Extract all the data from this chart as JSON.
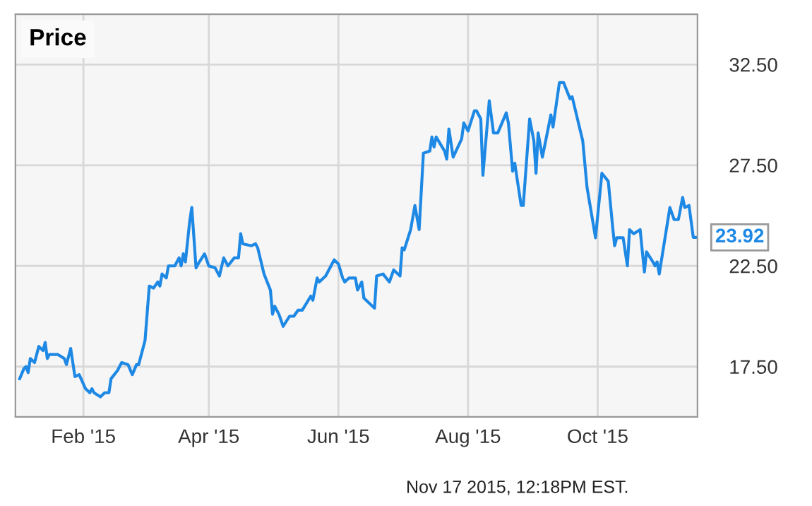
{
  "chart_data": {
    "type": "line",
    "title": "Price",
    "x": [
      "2015-01-02",
      "2015-01-04",
      "2015-01-05",
      "2015-01-06",
      "2015-01-07",
      "2015-01-09",
      "2015-01-11",
      "2015-01-13",
      "2015-01-14",
      "2015-01-15",
      "2015-01-16",
      "2015-01-20",
      "2015-01-23",
      "2015-01-24",
      "2015-01-26",
      "2015-01-28",
      "2015-01-30",
      "2015-02-02",
      "2015-02-04",
      "2015-02-05",
      "2015-02-06",
      "2015-02-09",
      "2015-02-11",
      "2015-02-13",
      "2015-02-14",
      "2015-02-17",
      "2015-02-19",
      "2015-02-22",
      "2015-02-24",
      "2015-02-26",
      "2015-02-27",
      "2015-03-02",
      "2015-03-04",
      "2015-03-06",
      "2015-03-08",
      "2015-03-09",
      "2015-03-10",
      "2015-03-12",
      "2015-03-13",
      "2015-03-16",
      "2015-03-18",
      "2015-03-19",
      "2015-03-20",
      "2015-03-21",
      "2015-03-23",
      "2015-03-24",
      "2015-03-26",
      "2015-03-27",
      "2015-03-30",
      "2015-04-01",
      "2015-04-04",
      "2015-04-06",
      "2015-04-08",
      "2015-04-10",
      "2015-04-13",
      "2015-04-15",
      "2015-04-16",
      "2015-04-17",
      "2015-04-21",
      "2015-04-23",
      "2015-04-24",
      "2015-04-27",
      "2015-04-30",
      "2015-05-01",
      "2015-05-02",
      "2015-05-04",
      "2015-05-06",
      "2015-05-09",
      "2015-05-11",
      "2015-05-13",
      "2015-05-15",
      "2015-05-19",
      "2015-05-20",
      "2015-05-22",
      "2015-05-23",
      "2015-05-26",
      "2015-05-30",
      "2015-06-01",
      "2015-06-03",
      "2015-06-04",
      "2015-06-06",
      "2015-06-09",
      "2015-06-10",
      "2015-06-12",
      "2015-06-13",
      "2015-06-17",
      "2015-06-18",
      "2015-06-19",
      "2015-06-22",
      "2015-06-25",
      "2015-06-27",
      "2015-06-30",
      "2015-07-01",
      "2015-07-02",
      "2015-07-05",
      "2015-07-07",
      "2015-07-09",
      "2015-07-11",
      "2015-07-14",
      "2015-07-15",
      "2015-07-16",
      "2015-07-17",
      "2015-07-21",
      "2015-07-22",
      "2015-07-23",
      "2015-07-25",
      "2015-07-29",
      "2015-07-30",
      "2015-08-01",
      "2015-08-04",
      "2015-08-05",
      "2015-08-07",
      "2015-08-08",
      "2015-08-11",
      "2015-08-13",
      "2015-08-15",
      "2015-08-19",
      "2015-08-20",
      "2015-08-22",
      "2015-08-23",
      "2015-08-26",
      "2015-08-27",
      "2015-08-30",
      "2015-09-01",
      "2015-09-02",
      "2015-09-03",
      "2015-09-05",
      "2015-09-09",
      "2015-09-10",
      "2015-09-13",
      "2015-09-15",
      "2015-09-18",
      "2015-09-19",
      "2015-09-24",
      "2015-09-26",
      "2015-09-30",
      "2015-10-03",
      "2015-10-06",
      "2015-10-08",
      "2015-10-09",
      "2015-10-10",
      "2015-10-13",
      "2015-10-15",
      "2015-10-16",
      "2015-10-18",
      "2015-10-21",
      "2015-10-23",
      "2015-10-24",
      "2015-10-27",
      "2015-10-28",
      "2015-10-29",
      "2015-10-30",
      "2015-11-04",
      "2015-11-06",
      "2015-11-08",
      "2015-11-10",
      "2015-11-11",
      "2015-11-13",
      "2015-11-15",
      "2015-11-17"
    ],
    "series": [
      {
        "color": "#1e88e5",
        "values": [
          16.9,
          17.4,
          17.5,
          17.2,
          17.9,
          17.7,
          18.5,
          18.3,
          18.7,
          17.9,
          18.1,
          18.1,
          17.9,
          17.6,
          18.4,
          17.0,
          17.1,
          16.4,
          16.2,
          16.4,
          16.2,
          16.0,
          16.2,
          16.2,
          16.9,
          17.3,
          17.7,
          17.6,
          17.1,
          17.6,
          17.6,
          18.8,
          21.5,
          21.4,
          21.7,
          21.5,
          22.1,
          21.9,
          22.5,
          22.5,
          22.9,
          22.5,
          23.1,
          22.7,
          24.7,
          25.4,
          22.4,
          22.6,
          23.1,
          22.5,
          22.4,
          22.0,
          22.9,
          22.5,
          22.9,
          22.9,
          24.1,
          23.6,
          23.5,
          23.6,
          23.4,
          22.1,
          21.3,
          20.1,
          20.5,
          20.1,
          19.5,
          20.0,
          20.0,
          20.3,
          20.3,
          21.0,
          20.8,
          21.9,
          21.7,
          22.0,
          22.8,
          22.6,
          21.9,
          21.7,
          21.9,
          21.9,
          21.3,
          21.7,
          20.9,
          20.5,
          20.4,
          22.0,
          22.1,
          21.7,
          22.3,
          22.0,
          23.4,
          23.3,
          24.3,
          25.5,
          24.3,
          28.1,
          28.2,
          28.9,
          28.4,
          28.9,
          28.2,
          27.8,
          29.3,
          27.9,
          28.8,
          29.6,
          29.2,
          30.2,
          30.2,
          29.8,
          27.0,
          30.7,
          29.1,
          29.1,
          30.1,
          29.6,
          27.2,
          27.6,
          25.5,
          25.5,
          29.8,
          28.7,
          27.1,
          29.1,
          27.9,
          30.0,
          29.4,
          31.6,
          31.6,
          30.8,
          30.9,
          28.7,
          26.4,
          23.9,
          27.1,
          26.7,
          24.5,
          23.5,
          23.9,
          23.9,
          22.5,
          24.3,
          24.1,
          24.3,
          22.2,
          23.2,
          22.7,
          22.5,
          22.7,
          22.1,
          25.4,
          24.8,
          24.8,
          25.9,
          25.4,
          25.5,
          23.92,
          23.92
        ]
      }
    ],
    "xlim": [
      "2014-12-31",
      "2015-11-17"
    ],
    "xticks": [
      {
        "value": "2015-02-01",
        "label": "Feb '15"
      },
      {
        "value": "2015-04-01",
        "label": "Apr '15"
      },
      {
        "value": "2015-06-01",
        "label": "Jun '15"
      },
      {
        "value": "2015-08-01",
        "label": "Aug '15"
      },
      {
        "value": "2015-10-01",
        "label": "Oct '15"
      }
    ],
    "ylim": [
      15,
      35
    ],
    "yticks": [
      {
        "value": 17.5,
        "label": "17.50"
      },
      {
        "value": 22.5,
        "label": "22.50"
      },
      {
        "value": 27.5,
        "label": "27.50"
      },
      {
        "value": 32.5,
        "label": "32.50"
      }
    ],
    "grid": true,
    "marker": "none",
    "line_style": "solid",
    "annotations": [
      {
        "text": "23.92",
        "x": "2015-11-17",
        "y": 23.92
      },
      "Nov 17 2015, 12:18PM EST."
    ]
  }
}
